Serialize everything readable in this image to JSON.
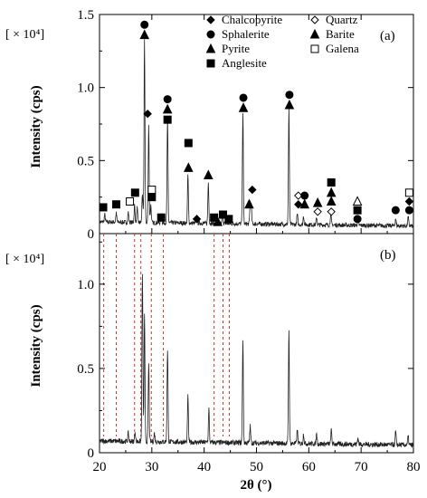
{
  "chart_data": [
    {
      "type": "line",
      "panel_label": "(a)",
      "scale_label": "[ × 10⁴]",
      "ylabel": "Intensity (cps)",
      "ylim": [
        0,
        1.5
      ],
      "xlim": [
        20,
        80
      ],
      "y_ticks": [
        "0",
        "0.5",
        "1.0",
        "1.5"
      ],
      "y_tick_values": [
        0,
        0.5,
        1.0,
        1.5
      ],
      "legend_position": "top-right",
      "legend": [
        {
          "marker": "diamond-filled",
          "label": "Chalcopyrite"
        },
        {
          "marker": "diamond-open",
          "label": "Quartz"
        },
        {
          "marker": "circle-filled",
          "label": "Sphalerite"
        },
        {
          "marker": "triangle-filled",
          "label": "Barite"
        },
        {
          "marker": "triangle-filled",
          "label": "Pyrite"
        },
        {
          "marker": "square-open",
          "label": "Galena"
        },
        {
          "marker": "square-filled",
          "label": "Anglesite"
        }
      ],
      "baseline": 0.08,
      "peaks": [
        {
          "x": 21.0,
          "y": 0.05
        },
        {
          "x": 23.2,
          "y": 0.06
        },
        {
          "x": 25.5,
          "y": 0.07
        },
        {
          "x": 26.7,
          "y": 0.12
        },
        {
          "x": 27.2,
          "y": 0.1
        },
        {
          "x": 28.2,
          "y": 0.2
        },
        {
          "x": 28.6,
          "y": 1.25
        },
        {
          "x": 29.4,
          "y": 0.66
        },
        {
          "x": 29.8,
          "y": 0.12
        },
        {
          "x": 31.8,
          "y": 0.06
        },
        {
          "x": 33.0,
          "y": 0.7
        },
        {
          "x": 36.9,
          "y": 0.33
        },
        {
          "x": 38.6,
          "y": 0.05
        },
        {
          "x": 40.8,
          "y": 0.28
        },
        {
          "x": 42.5,
          "y": 0.05
        },
        {
          "x": 43.5,
          "y": 0.06
        },
        {
          "x": 47.4,
          "y": 0.77
        },
        {
          "x": 48.8,
          "y": 0.14
        },
        {
          "x": 49.0,
          "y": 0.12
        },
        {
          "x": 56.2,
          "y": 0.8
        },
        {
          "x": 57.8,
          "y": 0.07
        },
        {
          "x": 59.0,
          "y": 0.06
        },
        {
          "x": 61.5,
          "y": 0.05
        },
        {
          "x": 64.2,
          "y": 0.08
        },
        {
          "x": 69.4,
          "y": 0.05
        },
        {
          "x": 76.6,
          "y": 0.05
        },
        {
          "x": 79.0,
          "y": 0.06
        }
      ],
      "markers": [
        {
          "x": 20.7,
          "y": 0.18,
          "type": "square-filled"
        },
        {
          "x": 23.2,
          "y": 0.2,
          "type": "square-filled"
        },
        {
          "x": 25.8,
          "y": 0.22,
          "type": "square-open"
        },
        {
          "x": 26.8,
          "y": 0.28,
          "type": "square-filled"
        },
        {
          "x": 28.6,
          "y": 1.43,
          "type": "circle-filled"
        },
        {
          "x": 28.6,
          "y": 1.36,
          "type": "triangle-filled"
        },
        {
          "x": 29.2,
          "y": 0.82,
          "type": "diamond-filled"
        },
        {
          "x": 30.0,
          "y": 0.3,
          "type": "square-open"
        },
        {
          "x": 30.0,
          "y": 0.25,
          "type": "square-filled"
        },
        {
          "x": 31.8,
          "y": 0.11,
          "type": "square-filled"
        },
        {
          "x": 33.0,
          "y": 0.92,
          "type": "circle-filled"
        },
        {
          "x": 33.0,
          "y": 0.85,
          "type": "triangle-filled"
        },
        {
          "x": 33.0,
          "y": 0.78,
          "type": "square-filled"
        },
        {
          "x": 37.0,
          "y": 0.62,
          "type": "square-filled"
        },
        {
          "x": 37.0,
          "y": 0.45,
          "type": "triangle-filled"
        },
        {
          "x": 38.6,
          "y": 0.1,
          "type": "diamond-filled"
        },
        {
          "x": 40.8,
          "y": 0.4,
          "type": "triangle-filled"
        },
        {
          "x": 41.9,
          "y": 0.11,
          "type": "square-filled"
        },
        {
          "x": 42.6,
          "y": 0.08,
          "type": "triangle-filled"
        },
        {
          "x": 43.6,
          "y": 0.13,
          "type": "square-filled"
        },
        {
          "x": 44.7,
          "y": 0.1,
          "type": "square-filled"
        },
        {
          "x": 47.5,
          "y": 0.93,
          "type": "circle-filled"
        },
        {
          "x": 47.5,
          "y": 0.86,
          "type": "triangle-filled"
        },
        {
          "x": 48.6,
          "y": 0.2,
          "type": "triangle-filled"
        },
        {
          "x": 49.2,
          "y": 0.3,
          "type": "diamond-filled"
        },
        {
          "x": 56.3,
          "y": 0.95,
          "type": "circle-filled"
        },
        {
          "x": 56.3,
          "y": 0.88,
          "type": "triangle-filled"
        },
        {
          "x": 58.0,
          "y": 0.26,
          "type": "diamond-open"
        },
        {
          "x": 58.0,
          "y": 0.2,
          "type": "diamond-filled"
        },
        {
          "x": 59.2,
          "y": 0.26,
          "type": "circle-filled"
        },
        {
          "x": 59.2,
          "y": 0.2,
          "type": "triangle-filled"
        },
        {
          "x": 61.7,
          "y": 0.21,
          "type": "triangle-filled"
        },
        {
          "x": 61.7,
          "y": 0.15,
          "type": "diamond-open"
        },
        {
          "x": 64.3,
          "y": 0.35,
          "type": "square-filled"
        },
        {
          "x": 64.3,
          "y": 0.28,
          "type": "triangle-filled"
        },
        {
          "x": 64.3,
          "y": 0.22,
          "type": "triangle-filled"
        },
        {
          "x": 64.3,
          "y": 0.15,
          "type": "diamond-open"
        },
        {
          "x": 69.3,
          "y": 0.22,
          "type": "triangle-open"
        },
        {
          "x": 69.3,
          "y": 0.16,
          "type": "square-filled"
        },
        {
          "x": 69.3,
          "y": 0.1,
          "type": "circle-filled"
        },
        {
          "x": 76.6,
          "y": 0.16,
          "type": "circle-filled"
        },
        {
          "x": 79.2,
          "y": 0.28,
          "type": "square-open"
        },
        {
          "x": 79.2,
          "y": 0.22,
          "type": "diamond-filled"
        },
        {
          "x": 79.2,
          "y": 0.16,
          "type": "circle-filled"
        }
      ]
    },
    {
      "type": "line",
      "panel_label": "(b)",
      "scale_label": "[ × 10⁴]",
      "ylabel": "Intensity (cps)",
      "xlabel": "2θ (°)",
      "ylim": [
        0,
        1.3
      ],
      "xlim": [
        20,
        80
      ],
      "x_ticks": [
        "20",
        "30",
        "40",
        "50",
        "60",
        "70",
        "80"
      ],
      "x_tick_values": [
        20,
        30,
        40,
        50,
        60,
        70,
        80
      ],
      "y_ticks": [
        "0",
        "0.5",
        "1.0"
      ],
      "y_tick_values": [
        0,
        0.5,
        1.0
      ],
      "baseline": 0.07,
      "peaks": [
        {
          "x": 25.5,
          "y": 0.05
        },
        {
          "x": 26.8,
          "y": 0.06
        },
        {
          "x": 28.2,
          "y": 1.0
        },
        {
          "x": 28.6,
          "y": 0.75
        },
        {
          "x": 29.4,
          "y": 0.46
        },
        {
          "x": 30.5,
          "y": 0.05
        },
        {
          "x": 33.0,
          "y": 0.55
        },
        {
          "x": 36.9,
          "y": 0.27
        },
        {
          "x": 40.9,
          "y": 0.2
        },
        {
          "x": 47.4,
          "y": 0.61
        },
        {
          "x": 48.8,
          "y": 0.1
        },
        {
          "x": 56.2,
          "y": 0.68
        },
        {
          "x": 57.8,
          "y": 0.08
        },
        {
          "x": 59.0,
          "y": 0.06
        },
        {
          "x": 61.5,
          "y": 0.06
        },
        {
          "x": 64.3,
          "y": 0.08
        },
        {
          "x": 69.4,
          "y": 0.04
        },
        {
          "x": 76.6,
          "y": 0.08
        },
        {
          "x": 79.0,
          "y": 0.05
        }
      ]
    }
  ],
  "reference_lines_x": [
    20.8,
    23.2,
    26.7,
    27.9,
    29.9,
    32.2,
    41.9,
    43.6,
    44.8
  ],
  "reference_line_color": "#c0392b"
}
